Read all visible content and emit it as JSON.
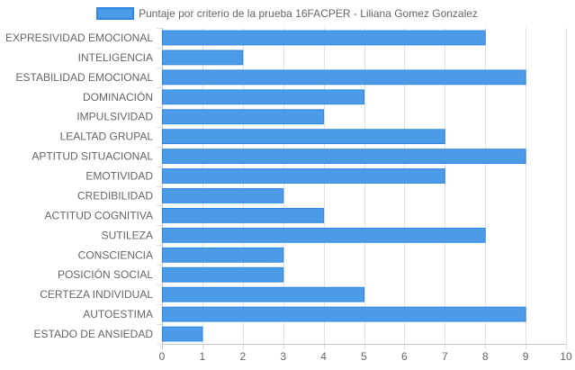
{
  "chart_data": {
    "type": "bar",
    "orientation": "horizontal",
    "categories": [
      "EXPRESIVIDAD EMOCIONAL",
      "INTELIGENCIA",
      "ESTABILIDAD EMOCIONAL",
      "DOMINACIÓN",
      "IMPULSIVIDAD",
      "LEALTAD GRUPAL",
      "APTITUD SITUACIONAL",
      "EMOTIVIDAD",
      "CREDIBILIDAD",
      "ACTITUD COGNITIVA",
      "SUTILEZA",
      "CONSCIENCIA",
      "POSICIÓN SOCIAL",
      "CERTEZA INDIVIDUAL",
      "AUTOESTIMA",
      "ESTADO DE ANSIEDAD"
    ],
    "series": [
      {
        "name": "Puntaje por criterio de la prueba 16FACPER - Liliana Gomez Gonzalez",
        "values": [
          8,
          2,
          9,
          5,
          4,
          7,
          9,
          7,
          3,
          4,
          8,
          3,
          3,
          5,
          9,
          1
        ],
        "color": "#4c9be8",
        "border_color": "#2f86e0"
      }
    ],
    "xlim": [
      0,
      10
    ],
    "x_ticks": [
      "0",
      "1",
      "2",
      "3",
      "4",
      "5",
      "6",
      "7",
      "8",
      "9",
      "10"
    ],
    "grid": true,
    "legend_position": "top-center",
    "title": "",
    "xlabel": "",
    "ylabel": ""
  }
}
